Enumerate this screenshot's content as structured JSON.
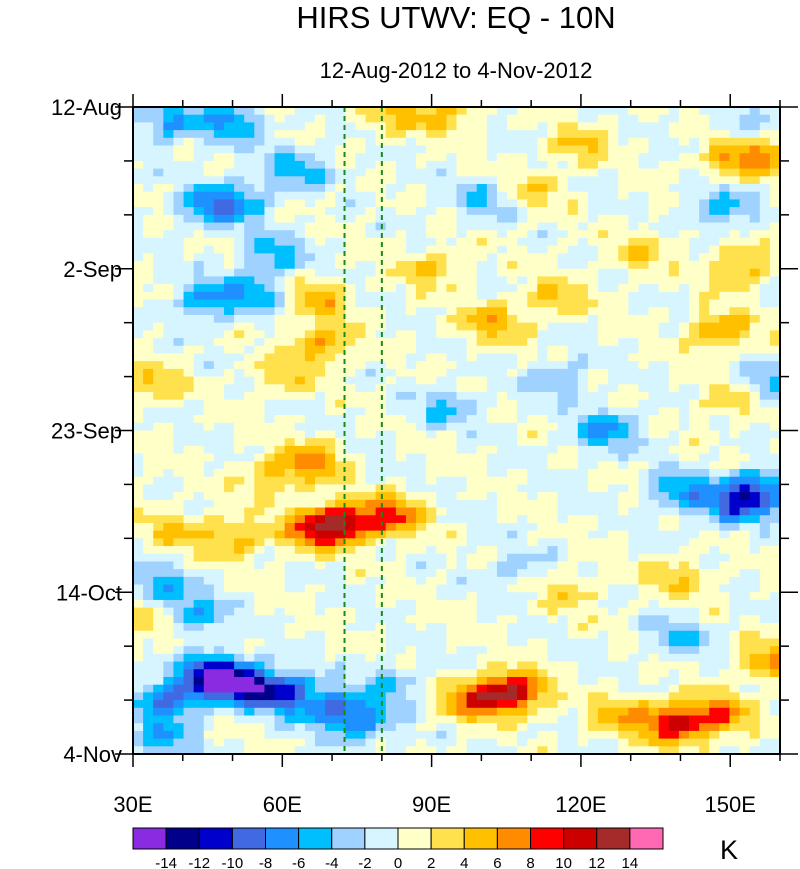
{
  "chart_data": {
    "type": "heatmap",
    "title": "HIRS UTWV: EQ - 10N",
    "subtitle": "12-Aug-2012 to 4-Nov-2012",
    "x_axis": {
      "range": [
        30,
        160
      ],
      "ticks": [
        {
          "value": 30,
          "label": "30E"
        },
        {
          "value": 60,
          "label": "60E"
        },
        {
          "value": 90,
          "label": "90E"
        },
        {
          "value": 120,
          "label": "120E"
        },
        {
          "value": 150,
          "label": "150E"
        }
      ]
    },
    "y_axis": {
      "range_days": [
        0,
        84
      ],
      "direction": "time increases downward",
      "ticks": [
        {
          "day": 0,
          "label": "12-Aug"
        },
        {
          "day": 21,
          "label": "2-Sep"
        },
        {
          "day": 42,
          "label": "23-Sep"
        },
        {
          "day": 63,
          "label": "14-Oct"
        },
        {
          "day": 84,
          "label": "4-Nov"
        }
      ]
    },
    "reference_lines": [
      {
        "longitude": 72.5,
        "style": "dashed",
        "color": "#1a8a1a"
      },
      {
        "longitude": 80,
        "style": "dashed",
        "color": "#1a8a1a"
      }
    ],
    "colorbar": {
      "unit": "K",
      "levels": [
        -16,
        -14,
        -12,
        -10,
        -8,
        -6,
        -4,
        -2,
        0,
        2,
        4,
        6,
        8,
        10,
        12,
        14,
        16
      ],
      "labels": [
        "-14",
        "-12",
        "-10",
        "-8",
        "-6",
        "-4",
        "-2",
        "0",
        "2",
        "4",
        "6",
        "8",
        "10",
        "12",
        "14"
      ],
      "colors": [
        "#8a2be2",
        "#00008b",
        "#0000cd",
        "#4169e1",
        "#1e90ff",
        "#00bfff",
        "#a0d2ff",
        "#d6f5ff",
        "#ffffc8",
        "#ffe14d",
        "#ffc000",
        "#ff8c00",
        "#ff0000",
        "#cd0000",
        "#a52a2a",
        "#ff69b4"
      ]
    },
    "features": [
      {
        "lon": 72,
        "day": 54,
        "value": 10
      },
      {
        "lon": 66,
        "day": 55,
        "value": 7
      },
      {
        "lon": 82,
        "day": 53,
        "value": 8
      },
      {
        "lon": 50,
        "day": 56,
        "value": 5
      },
      {
        "lon": 38,
        "day": 55,
        "value": 4
      },
      {
        "lon": 66,
        "day": 46,
        "value": 6
      },
      {
        "lon": 58,
        "day": 48,
        "value": 4
      },
      {
        "lon": 106,
        "day": 76,
        "value": 12
      },
      {
        "lon": 98,
        "day": 77,
        "value": 7
      },
      {
        "lon": 139,
        "day": 80,
        "value": 10
      },
      {
        "lon": 148,
        "day": 79,
        "value": 7
      },
      {
        "lon": 128,
        "day": 79,
        "value": 5
      },
      {
        "lon": 158,
        "day": 72,
        "value": 6
      },
      {
        "lon": 68,
        "day": 31,
        "value": 6
      },
      {
        "lon": 67,
        "day": 25,
        "value": 5
      },
      {
        "lon": 90,
        "day": 21,
        "value": 4
      },
      {
        "lon": 102,
        "day": 28,
        "value": 5
      },
      {
        "lon": 115,
        "day": 25,
        "value": 4
      },
      {
        "lon": 148,
        "day": 29,
        "value": 6
      },
      {
        "lon": 152,
        "day": 21,
        "value": 5
      },
      {
        "lon": 132,
        "day": 19,
        "value": 3
      },
      {
        "lon": 82,
        "day": 1,
        "value": 4
      },
      {
        "lon": 93,
        "day": 1,
        "value": 4
      },
      {
        "lon": 120,
        "day": 5,
        "value": 4
      },
      {
        "lon": 150,
        "day": 7,
        "value": 5
      },
      {
        "lon": 158,
        "day": 6,
        "value": 6
      },
      {
        "lon": 110,
        "day": 11,
        "value": 3
      },
      {
        "lon": 34,
        "day": 36,
        "value": 4
      },
      {
        "lon": 33,
        "day": 67,
        "value": 4
      },
      {
        "lon": 150,
        "day": 38,
        "value": 4
      },
      {
        "lon": 140,
        "day": 61,
        "value": 4
      },
      {
        "lon": 118,
        "day": 63,
        "value": 3
      },
      {
        "lon": 60,
        "day": 35,
        "value": 3
      },
      {
        "lon": 46,
        "day": 74,
        "value": -13
      },
      {
        "lon": 60,
        "day": 76,
        "value": -10
      },
      {
        "lon": 52,
        "day": 75,
        "value": -9
      },
      {
        "lon": 37,
        "day": 77,
        "value": -8
      },
      {
        "lon": 70,
        "day": 78,
        "value": -7
      },
      {
        "lon": 76,
        "day": 80,
        "value": -6
      },
      {
        "lon": 82,
        "day": 75,
        "value": -4
      },
      {
        "lon": 37,
        "day": 2,
        "value": -6
      },
      {
        "lon": 50,
        "day": 2,
        "value": -6
      },
      {
        "lon": 45,
        "day": 13,
        "value": -6
      },
      {
        "lon": 52,
        "day": 12,
        "value": -5
      },
      {
        "lon": 58,
        "day": 19,
        "value": -5
      },
      {
        "lon": 45,
        "day": 25,
        "value": -6
      },
      {
        "lon": 55,
        "day": 24,
        "value": -5
      },
      {
        "lon": 63,
        "day": 8,
        "value": -5
      },
      {
        "lon": 100,
        "day": 12,
        "value": -4
      },
      {
        "lon": 93,
        "day": 39,
        "value": -4
      },
      {
        "lon": 116,
        "day": 35,
        "value": -4
      },
      {
        "lon": 125,
        "day": 42,
        "value": -6
      },
      {
        "lon": 140,
        "day": 50,
        "value": -6
      },
      {
        "lon": 155,
        "day": 50,
        "value": -10
      },
      {
        "lon": 150,
        "day": 52,
        "value": -6
      },
      {
        "lon": 148,
        "day": 13,
        "value": -5
      },
      {
        "lon": 157,
        "day": 36,
        "value": -5
      },
      {
        "lon": 140,
        "day": 69,
        "value": -4
      },
      {
        "lon": 35,
        "day": 62,
        "value": -5
      },
      {
        "lon": 42,
        "day": 66,
        "value": -6
      },
      {
        "lon": 106,
        "day": 60,
        "value": -3
      },
      {
        "lon": 155,
        "day": 3,
        "value": -3
      },
      {
        "lon": 36,
        "day": 82,
        "value": -5
      }
    ]
  }
}
